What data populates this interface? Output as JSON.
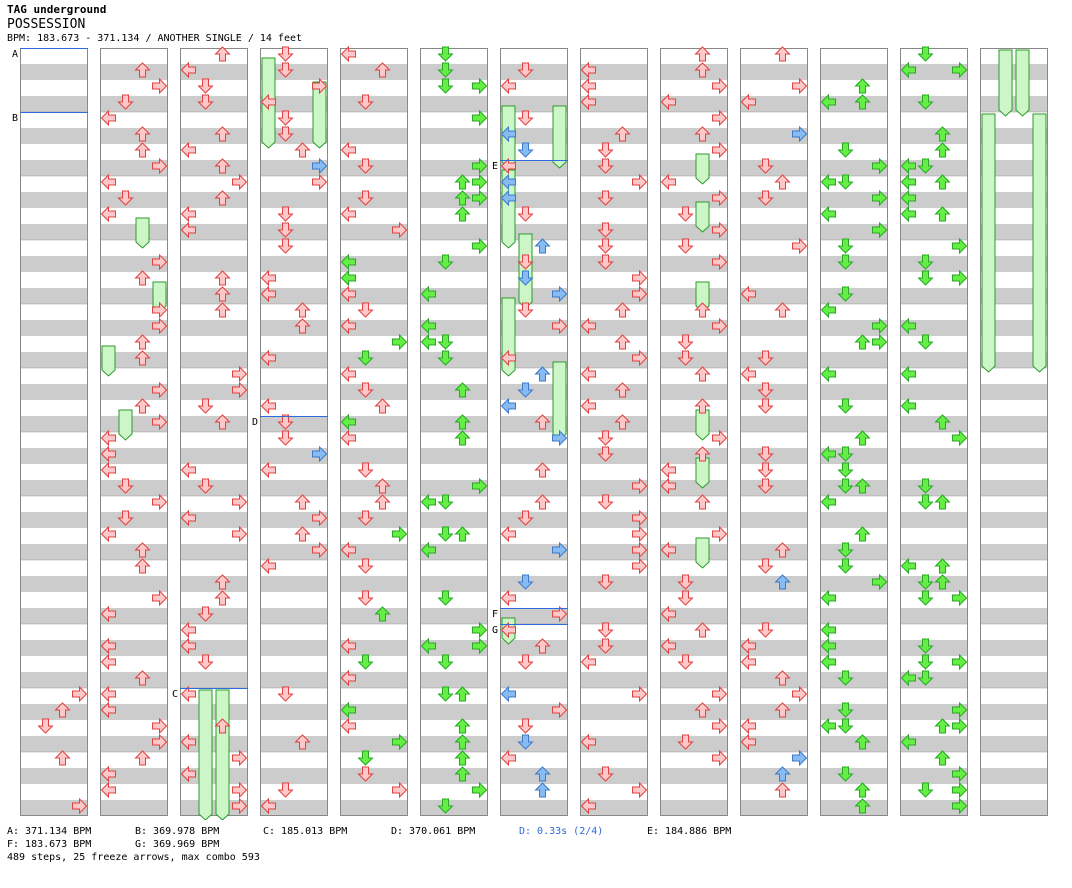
{
  "header": {
    "artist": "TAG underground",
    "title": "POSSESSION",
    "info": "BPM: 183.673 - 371.134 / ANOTHER SINGLE / 14 feet"
  },
  "colors": {
    "red_fill": "#ffc8c8",
    "red_stroke": "#e04040",
    "green_fill": "#66ee44",
    "green_stroke": "#22aa22",
    "blue_fill": "#88bbf2",
    "blue_stroke": "#3a7acc",
    "freeze_fill": "#ccf5c8",
    "freeze_stroke": "#2a9a2a",
    "band_gray": "#cccccc",
    "marker_line": "#2a6bdd"
  },
  "markers": [
    {
      "label": "A",
      "col": 0,
      "pos": 0
    },
    {
      "label": "B",
      "col": 0,
      "pos": 16
    },
    {
      "label": "C",
      "col": 2,
      "pos": 160
    },
    {
      "label": "D",
      "col": 3,
      "pos": 92
    },
    {
      "label": "E",
      "col": 6,
      "pos": 28
    },
    {
      "label": "F",
      "col": 6,
      "pos": 140
    },
    {
      "label": "G",
      "col": 6,
      "pos": 144
    }
  ],
  "freezes": [
    {
      "col": 3,
      "lane": 0,
      "start": 2,
      "end": 22
    },
    {
      "col": 3,
      "lane": 3,
      "start": 8,
      "end": 22
    },
    {
      "col": 1,
      "lane": 2,
      "start": 42,
      "end": 47
    },
    {
      "col": 1,
      "lane": 3,
      "start": 58,
      "end": 63
    },
    {
      "col": 1,
      "lane": 0,
      "start": 74,
      "end": 79
    },
    {
      "col": 1,
      "lane": 1,
      "start": 90,
      "end": 95
    },
    {
      "col": 2,
      "lane": 1,
      "start": 160,
      "end": 190
    },
    {
      "col": 2,
      "lane": 2,
      "start": 160,
      "end": 190
    },
    {
      "col": 6,
      "lane": 0,
      "start": 14,
      "end": 27
    },
    {
      "col": 6,
      "lane": 3,
      "start": 14,
      "end": 27
    },
    {
      "col": 6,
      "lane": 0,
      "start": 30,
      "end": 47
    },
    {
      "col": 6,
      "lane": 1,
      "start": 46,
      "end": 62
    },
    {
      "col": 6,
      "lane": 0,
      "start": 62,
      "end": 79
    },
    {
      "col": 6,
      "lane": 3,
      "start": 78,
      "end": 95
    },
    {
      "col": 6,
      "lane": 0,
      "start": 142,
      "end": 146
    },
    {
      "col": 8,
      "lane": 2,
      "start": 26,
      "end": 31
    },
    {
      "col": 8,
      "lane": 2,
      "start": 38,
      "end": 43
    },
    {
      "col": 8,
      "lane": 2,
      "start": 58,
      "end": 63
    },
    {
      "col": 8,
      "lane": 2,
      "start": 90,
      "end": 95
    },
    {
      "col": 8,
      "lane": 2,
      "start": 102,
      "end": 107
    },
    {
      "col": 8,
      "lane": 2,
      "start": 122,
      "end": 127
    },
    {
      "col": 12,
      "lane": 1,
      "start": 0,
      "end": 14
    },
    {
      "col": 12,
      "lane": 2,
      "start": 0,
      "end": 14
    },
    {
      "col": 12,
      "lane": 0,
      "start": 16,
      "end": 78
    },
    {
      "col": 12,
      "lane": 3,
      "start": 16,
      "end": 78
    }
  ],
  "legend": {
    "bpms": [
      {
        "text": "A: 371.134 BPM",
        "row": 0,
        "col": 0
      },
      {
        "text": "B: 369.978 BPM",
        "row": 0,
        "col": 1
      },
      {
        "text": "C: 185.013 BPM",
        "row": 0,
        "col": 2
      },
      {
        "text": "D: 370.061 BPM",
        "row": 0,
        "col": 3
      },
      {
        "text": "E: 184.886 BPM",
        "row": 0,
        "col": 5
      },
      {
        "text": "F: 183.673 BPM",
        "row": 1,
        "col": 0
      },
      {
        "text": "G: 369.969 BPM",
        "row": 1,
        "col": 1
      }
    ],
    "stop": {
      "text": "D: 0.33s (2/4)",
      "row": 0,
      "col": 4
    }
  },
  "stats": "489 steps, 25 freeze arrows, max combo 593"
}
